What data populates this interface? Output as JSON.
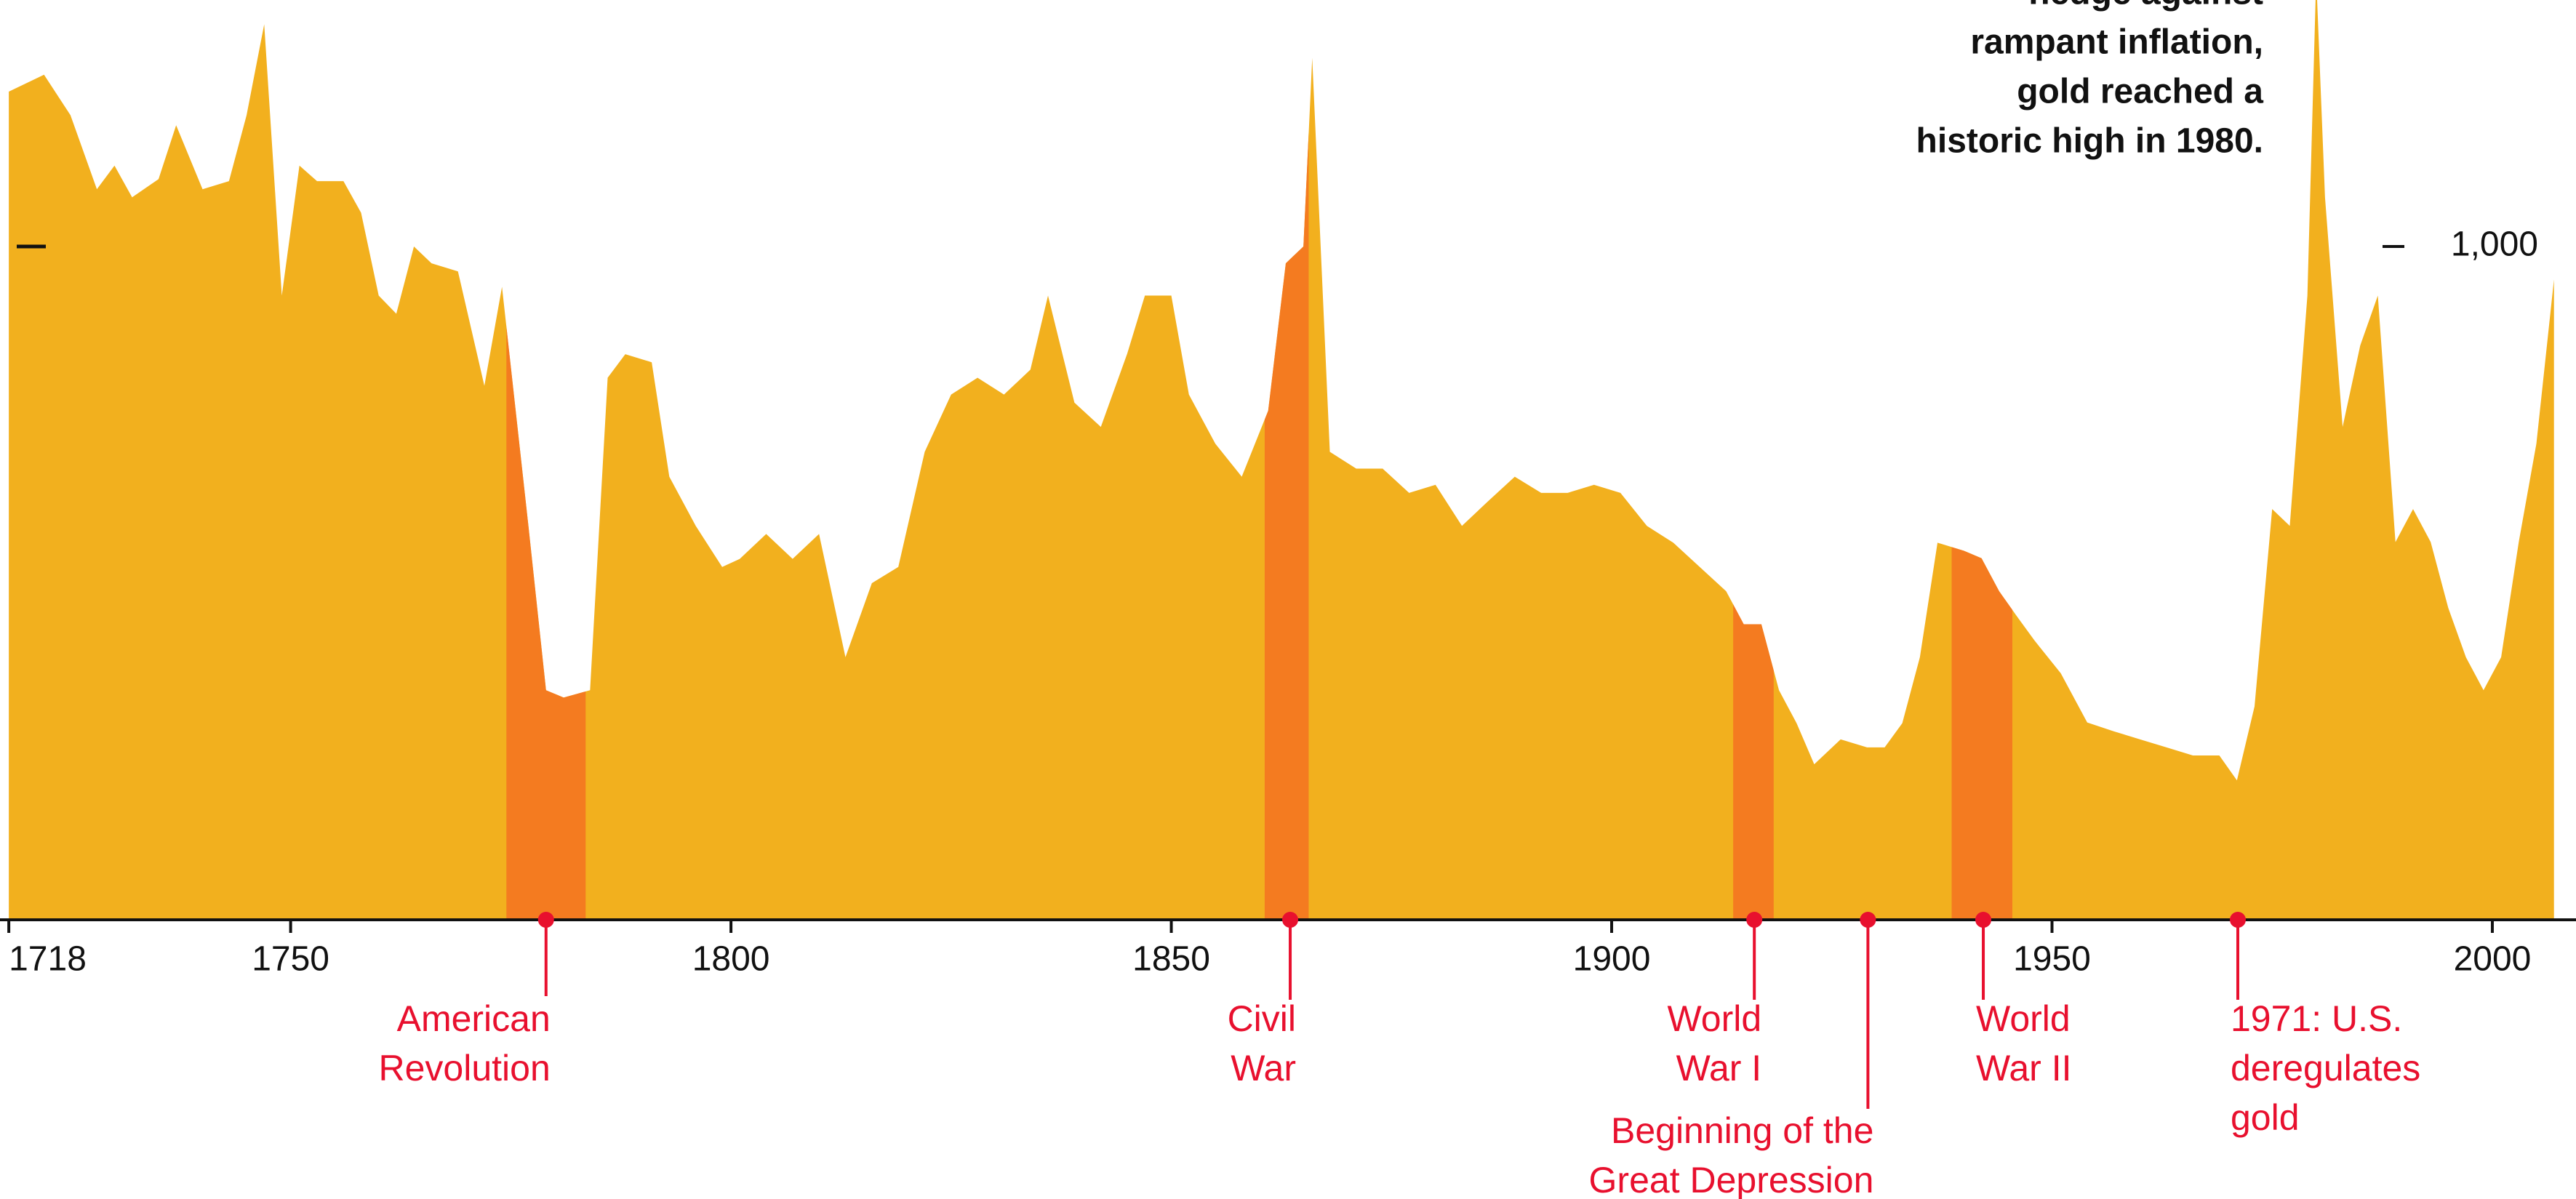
{
  "chart_data": {
    "type": "area",
    "color": "#f2b01e",
    "highlight_color": "#f47b20",
    "event_color": "#e8102e",
    "annotation": [
      "hedge against",
      "rampant inflation,",
      "gold reached a",
      "historic high in 1980."
    ],
    "xlim": [
      1717,
      2009.5
    ],
    "xticks": [
      1718,
      1750,
      1800,
      1850,
      1900,
      1950,
      2000
    ],
    "ylim": [
      0,
      1366
    ],
    "yticks": [
      {
        "value": 1000,
        "label": "1,000"
      }
    ],
    "x": [
      1718,
      1722,
      1725,
      1728,
      1730,
      1732,
      1735,
      1737,
      1740,
      1743,
      1745,
      1747,
      1749,
      1751,
      1753,
      1756,
      1758,
      1760,
      1762,
      1764,
      1766,
      1769,
      1772,
      1774,
      1777,
      1779,
      1781,
      1784,
      1786,
      1788,
      1791,
      1793,
      1796,
      1799,
      1801,
      1804,
      1807,
      1810,
      1813,
      1816,
      1819,
      1822,
      1825,
      1828,
      1831,
      1834,
      1836,
      1839,
      1842,
      1845,
      1847,
      1850,
      1852,
      1855,
      1858,
      1861,
      1863,
      1865,
      1866,
      1868,
      1871,
      1874,
      1877,
      1880,
      1883,
      1886,
      1889,
      1892,
      1895,
      1898,
      1901,
      1904,
      1907,
      1910,
      1913,
      1915,
      1917,
      1919,
      1921,
      1923,
      1926,
      1929,
      1931,
      1933,
      1935,
      1937,
      1940,
      1942,
      1944,
      1946,
      1948,
      1951,
      1954,
      1957,
      1960,
      1963,
      1966,
      1969,
      1971,
      1973,
      1975,
      1977,
      1979,
      1980,
      1981,
      1983,
      1985,
      1987,
      1989,
      1991,
      1993,
      1995,
      1997,
      1999,
      2001,
      2003,
      2005,
      2007
    ],
    "values": [
      1230,
      1255,
      1195,
      1085,
      1120,
      1073,
      1100,
      1180,
      1085,
      1097,
      1195,
      1330,
      927,
      1120,
      1097,
      1097,
      1050,
      927,
      900,
      1000,
      975,
      963,
      793,
      940,
      585,
      341,
      330,
      341,
      805,
      840,
      828,
      658,
      585,
      524,
      536,
      573,
      536,
      573,
      390,
      500,
      524,
      695,
      780,
      805,
      780,
      817,
      927,
      768,
      732,
      841,
      927,
      927,
      780,
      707,
      658,
      756,
      975,
      1000,
      1280,
      695,
      670,
      670,
      634,
      646,
      585,
      622,
      658,
      634,
      634,
      646,
      634,
      585,
      560,
      524,
      488,
      439,
      439,
      341,
      292,
      231,
      268,
      256,
      256,
      292,
      390,
      560,
      548,
      537,
      488,
      451,
      415,
      366,
      293,
      280,
      268,
      256,
      244,
      244,
      207,
      317,
      610,
      585,
      927,
      1400,
      1073,
      732,
      853,
      927,
      561,
      610,
      561,
      463,
      390,
      341,
      390,
      561,
      707,
      951
    ],
    "events": [
      {
        "label": [
          "American",
          "Revolution"
        ],
        "x": 1779,
        "start": 1774.5,
        "end": 1783.5
      },
      {
        "label": [
          "Civil",
          "War"
        ],
        "x": 1863.5,
        "start": 1860.6,
        "end": 1865.6
      },
      {
        "label": [
          "World",
          "War I"
        ],
        "x": 1916.2,
        "start": 1913.8,
        "end": 1918.4
      },
      {
        "label": [
          "Beginning of the",
          "Great Depression"
        ],
        "x": 1929.1
      },
      {
        "label": [
          "World",
          "War II"
        ],
        "x": 1942.2,
        "start": 1938.6,
        "end": 1945.5
      },
      {
        "label": [
          "1971: U.S.",
          "deregulates",
          "gold"
        ],
        "x": 1971.1
      }
    ]
  }
}
